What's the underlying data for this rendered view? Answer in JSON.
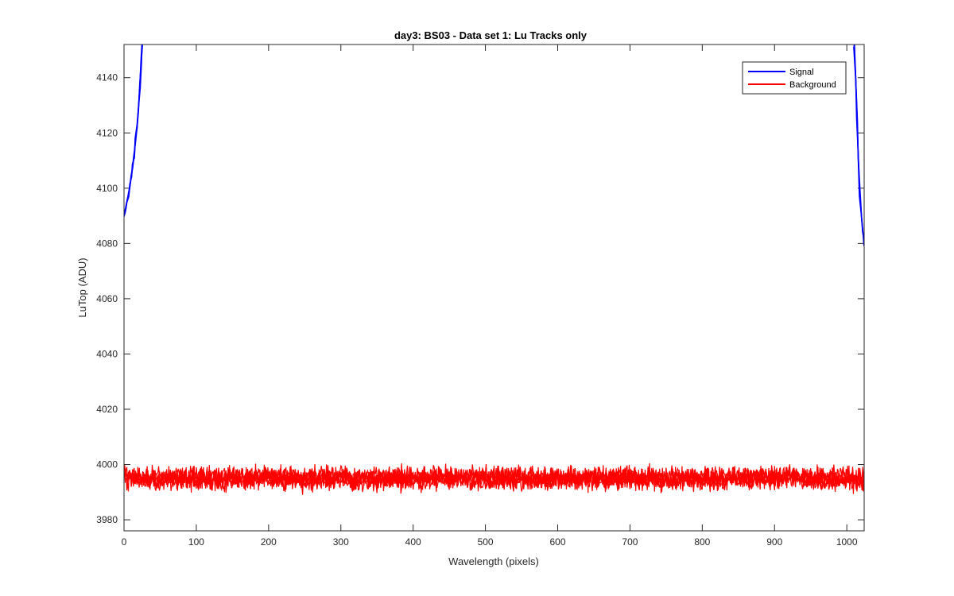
{
  "chart_data": {
    "type": "line",
    "title": "day3: BS03 - Data set 1: Lu Tracks only",
    "xlabel": "Wavelength (pixels)",
    "ylabel": "LuTop (ADU)",
    "xlim": [
      0,
      1024
    ],
    "ylim": [
      3976,
      4152
    ],
    "x_ticks": [
      0,
      100,
      200,
      300,
      400,
      500,
      600,
      700,
      800,
      900,
      1000
    ],
    "y_ticks": [
      3980,
      4000,
      4020,
      4040,
      4060,
      4080,
      4100,
      4120,
      4140
    ],
    "grid": false,
    "legend_position": "top-right",
    "series": [
      {
        "name": "Signal",
        "color": "#0000ff",
        "tracks": [
          {
            "x": [
              0,
              2,
              4,
              6,
              8,
              10,
              12,
              14,
              16,
              18,
              20,
              22,
              24,
              25
            ],
            "y": [
              4090,
              4092,
              4095,
              4098,
              4101,
              4104,
              4108,
              4112,
              4117,
              4122,
              4128,
              4136,
              4146,
              4152
            ]
          },
          {
            "x": [
              1010,
              1012,
              1014,
              1016,
              1018,
              1020,
              1022,
              1024
            ],
            "y": [
              4152,
              4140,
              4125,
              4110,
              4098,
              4090,
              4084,
              4080
            ]
          }
        ]
      },
      {
        "name": "Background",
        "color": "#ff0000",
        "level": 3995,
        "spread": 3,
        "x_range": [
          0,
          1024
        ]
      }
    ]
  }
}
